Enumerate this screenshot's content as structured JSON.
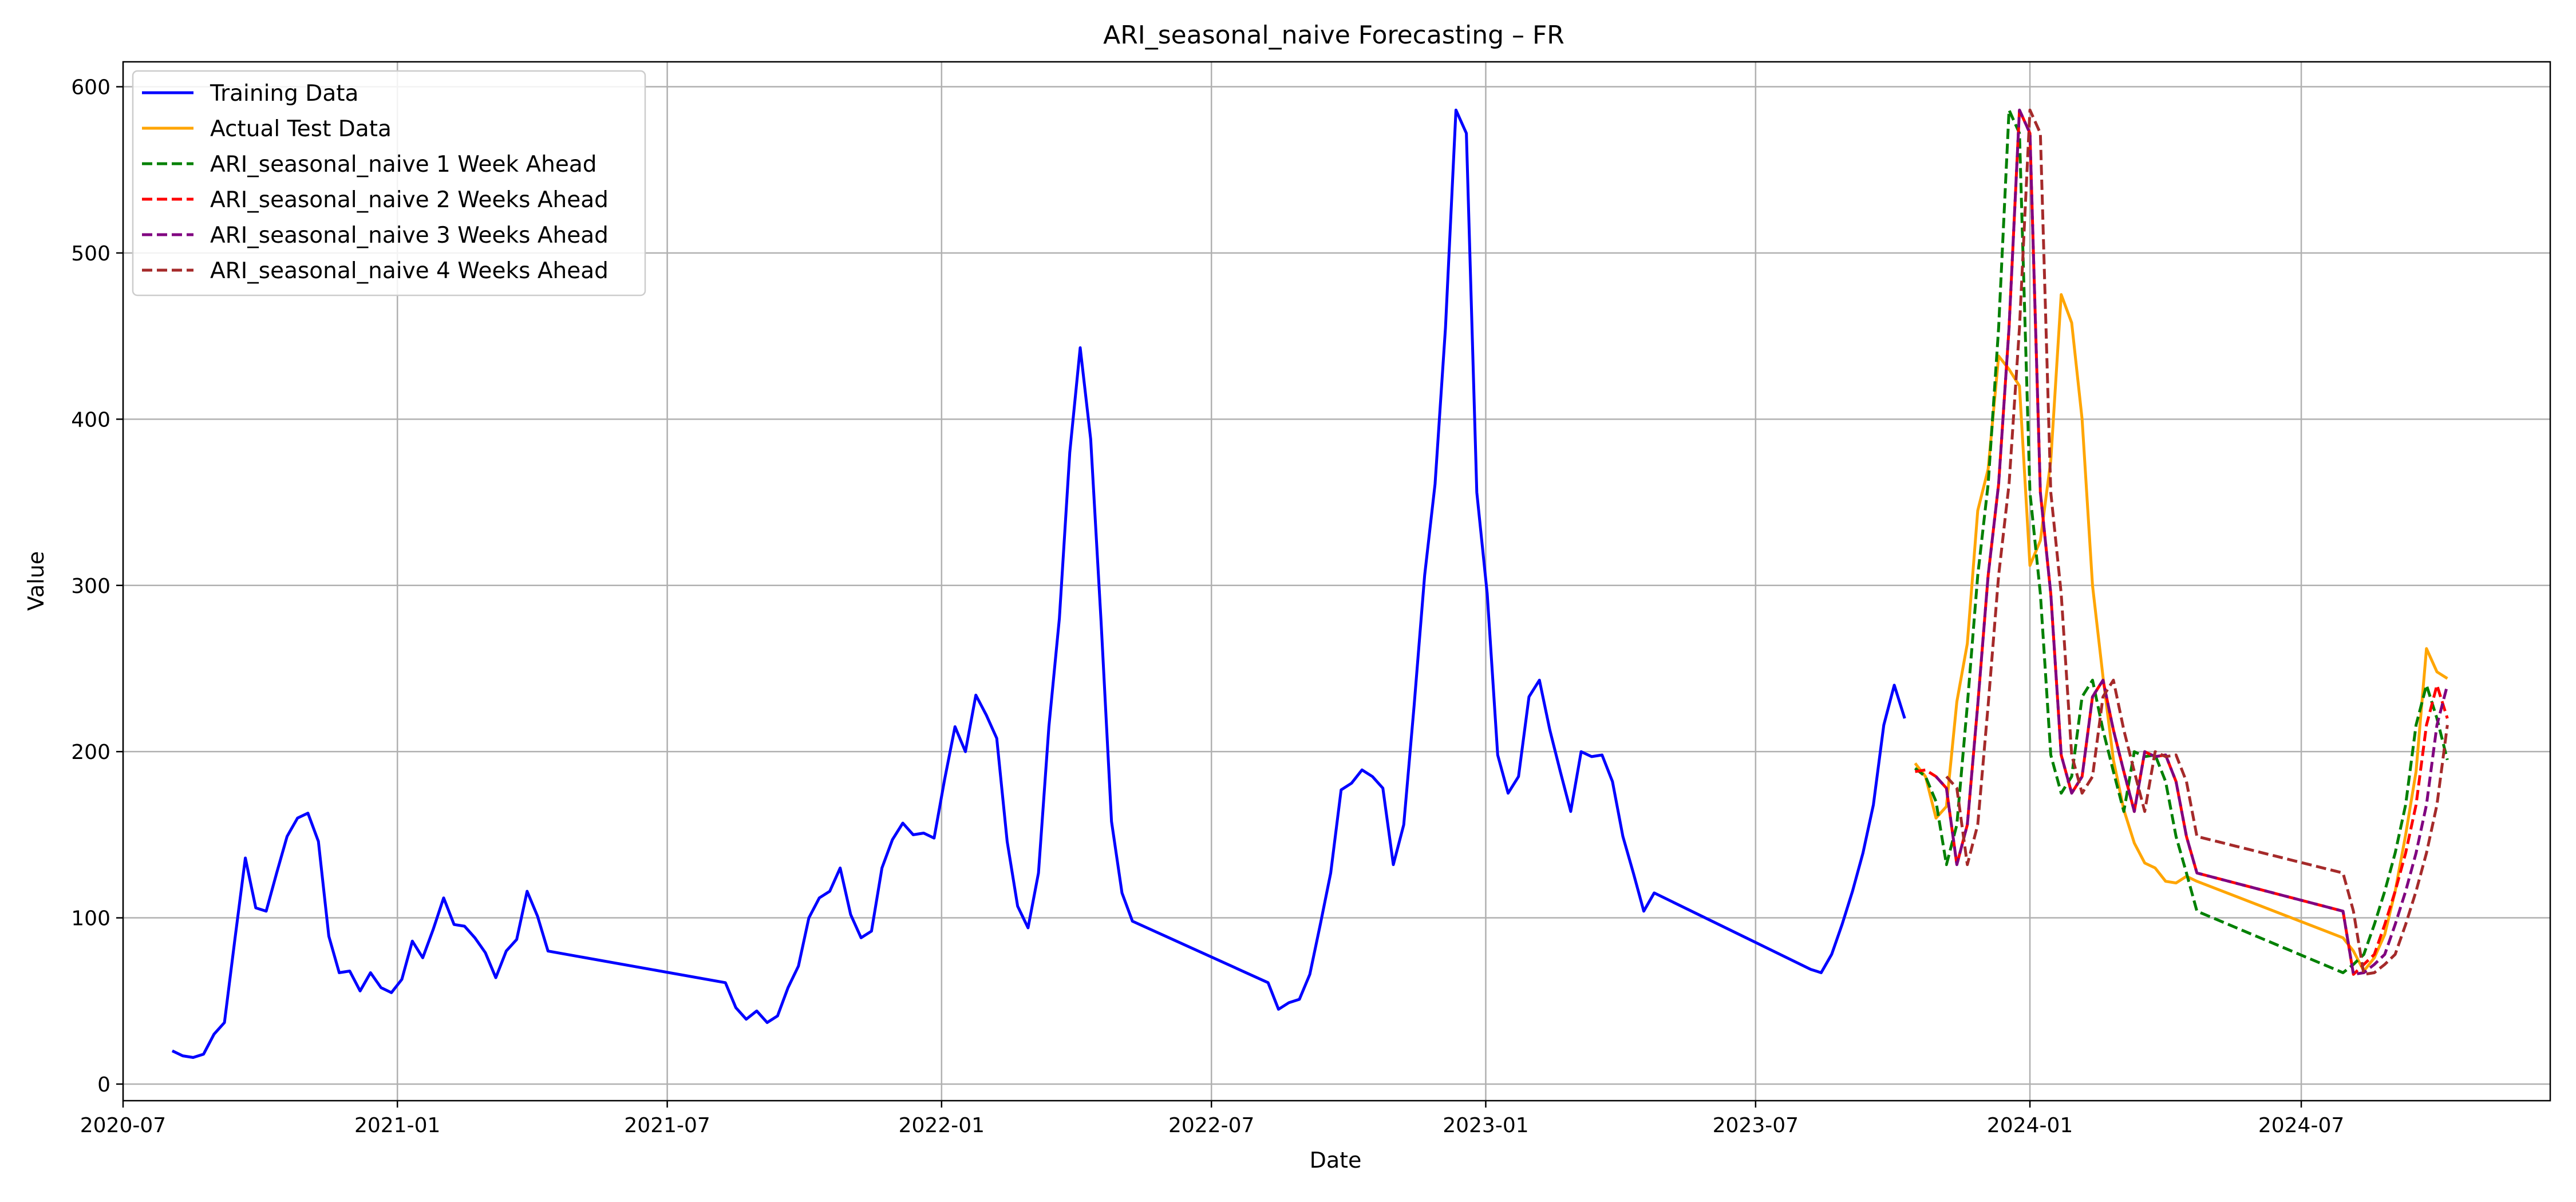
{
  "chart_data": {
    "type": "line",
    "title": "ARI_seasonal_naive Forecasting – FR",
    "xlabel": "Date",
    "ylabel": "Value",
    "xlim": [
      "2020-07-01",
      "2024-12-15"
    ],
    "ylim": [
      -10,
      615
    ],
    "x_ticks": [
      "2020-07-01",
      "2021-01-01",
      "2021-07-01",
      "2022-01-01",
      "2022-07-01",
      "2023-01-01",
      "2023-07-01",
      "2024-01-01",
      "2024-07-01"
    ],
    "x_tick_labels": [
      "2020-07",
      "2021-01",
      "2021-07",
      "2022-01",
      "2022-07",
      "2023-01",
      "2023-07",
      "2024-01",
      "2024-07"
    ],
    "y_ticks": [
      0,
      100,
      200,
      300,
      400,
      500,
      600
    ],
    "y_tick_labels": [
      "0",
      "100",
      "200",
      "300",
      "400",
      "500",
      "600"
    ],
    "grid": true,
    "legend_position": "top-left",
    "series": [
      {
        "name": "Training Data",
        "color": "#0000ff",
        "style": "solid",
        "x": [
          "2020-08-03",
          "2020-08-10",
          "2020-08-17",
          "2020-08-24",
          "2020-08-31",
          "2020-09-07",
          "2020-09-14",
          "2020-09-21",
          "2020-09-28",
          "2020-10-05",
          "2020-10-12",
          "2020-10-19",
          "2020-10-26",
          "2020-11-02",
          "2020-11-09",
          "2020-11-16",
          "2020-11-23",
          "2020-11-30",
          "2020-12-07",
          "2020-12-14",
          "2020-12-21",
          "2020-12-28",
          "2021-01-04",
          "2021-01-11",
          "2021-01-18",
          "2021-01-25",
          "2021-02-01",
          "2021-02-08",
          "2021-02-15",
          "2021-02-22",
          "2021-03-01",
          "2021-03-08",
          "2021-03-15",
          "2021-03-22",
          "2021-03-29",
          "2021-04-05",
          "2021-04-12",
          "2021-08-09",
          "2021-08-16",
          "2021-08-23",
          "2021-08-30",
          "2021-09-06",
          "2021-09-13",
          "2021-09-20",
          "2021-09-27",
          "2021-10-04",
          "2021-10-11",
          "2021-10-18",
          "2021-10-25",
          "2021-11-01",
          "2021-11-08",
          "2021-11-15",
          "2021-11-22",
          "2021-11-29",
          "2021-12-06",
          "2021-12-13",
          "2021-12-20",
          "2021-12-27",
          "2022-01-03",
          "2022-01-10",
          "2022-01-17",
          "2022-01-24",
          "2022-01-31",
          "2022-02-07",
          "2022-02-14",
          "2022-02-21",
          "2022-02-28",
          "2022-03-07",
          "2022-03-14",
          "2022-03-21",
          "2022-03-28",
          "2022-04-04",
          "2022-04-11",
          "2022-04-18",
          "2022-04-25",
          "2022-05-02",
          "2022-05-09",
          "2022-08-08",
          "2022-08-15",
          "2022-08-22",
          "2022-08-29",
          "2022-09-05",
          "2022-09-12",
          "2022-09-19",
          "2022-09-26",
          "2022-10-03",
          "2022-10-10",
          "2022-10-17",
          "2022-10-24",
          "2022-10-31",
          "2022-11-07",
          "2022-11-14",
          "2022-11-21",
          "2022-11-28",
          "2022-12-05",
          "2022-12-12",
          "2022-12-19",
          "2022-12-26",
          "2023-01-02",
          "2023-01-09",
          "2023-01-16",
          "2023-01-23",
          "2023-01-30",
          "2023-02-06",
          "2023-02-13",
          "2023-02-20",
          "2023-02-27",
          "2023-03-06",
          "2023-03-13",
          "2023-03-20",
          "2023-03-27",
          "2023-04-03",
          "2023-04-10",
          "2023-04-17",
          "2023-04-24",
          "2023-08-07",
          "2023-08-14",
          "2023-08-21",
          "2023-08-28",
          "2023-09-04",
          "2023-09-11",
          "2023-09-18",
          "2023-09-25",
          "2023-10-02",
          "2023-10-09"
        ],
        "y": [
          20,
          17,
          16,
          18,
          30,
          37,
          87,
          136,
          106,
          104,
          127,
          149,
          160,
          163,
          146,
          89,
          67,
          68,
          56,
          67,
          58,
          55,
          63,
          86,
          76,
          93,
          112,
          96,
          95,
          88,
          79,
          64,
          80,
          87,
          116,
          101,
          80,
          61,
          46,
          39,
          44,
          37,
          41,
          58,
          71,
          100,
          112,
          116,
          130,
          102,
          88,
          92,
          130,
          147,
          157,
          150,
          151,
          148,
          183,
          215,
          200,
          234,
          222,
          208,
          146,
          107,
          94,
          127,
          215,
          280,
          380,
          443,
          388,
          278,
          158,
          115,
          98,
          61,
          45,
          49,
          51,
          66,
          96,
          127,
          177,
          181,
          189,
          185,
          178,
          132,
          156,
          228,
          306,
          361,
          455,
          586,
          572,
          356,
          295,
          198,
          175,
          185,
          233,
          243,
          213,
          188,
          164,
          200,
          197,
          198,
          182,
          149,
          127,
          104,
          115,
          69,
          67,
          78,
          96,
          116,
          139,
          168,
          216,
          240,
          220
        ]
      },
      {
        "name": "Actual Test Data",
        "color": "#ffa500",
        "style": "solid",
        "x": [
          "2023-10-16",
          "2023-10-23",
          "2023-10-30",
          "2023-11-06",
          "2023-11-13",
          "2023-11-20",
          "2023-11-27",
          "2023-12-04",
          "2023-12-11",
          "2023-12-18",
          "2023-12-25",
          "2024-01-01",
          "2024-01-08",
          "2024-01-15",
          "2024-01-22",
          "2024-01-29",
          "2024-02-05",
          "2024-02-12",
          "2024-02-19",
          "2024-02-26",
          "2024-03-04",
          "2024-03-11",
          "2024-03-18",
          "2024-03-25",
          "2024-04-01",
          "2024-04-08",
          "2024-04-15",
          "2024-04-22",
          "2024-07-29",
          "2024-08-05",
          "2024-08-12",
          "2024-08-19",
          "2024-08-26",
          "2024-09-02",
          "2024-09-09",
          "2024-09-16",
          "2024-09-23",
          "2024-09-30",
          "2024-10-07"
        ],
        "y": [
          193,
          185,
          160,
          167,
          230,
          265,
          345,
          370,
          438,
          430,
          420,
          312,
          327,
          375,
          475,
          458,
          400,
          300,
          245,
          195,
          165,
          145,
          133,
          130,
          122,
          121,
          125,
          122,
          88,
          80,
          68,
          76,
          90,
          116,
          150,
          188,
          262,
          248,
          244
        ]
      },
      {
        "name": "ARI_seasonal_naive 1 Week Ahead",
        "color": "#008000",
        "style": "dashed",
        "x": [
          "2023-10-16",
          "2023-10-23",
          "2023-10-30",
          "2023-11-06",
          "2023-11-13",
          "2023-11-20",
          "2023-11-27",
          "2023-12-04",
          "2023-12-11",
          "2023-12-18",
          "2023-12-25",
          "2024-01-01",
          "2024-01-08",
          "2024-01-15",
          "2024-01-22",
          "2024-01-29",
          "2024-02-05",
          "2024-02-12",
          "2024-02-19",
          "2024-02-26",
          "2024-03-04",
          "2024-03-11",
          "2024-03-18",
          "2024-03-25",
          "2024-04-01",
          "2024-04-08",
          "2024-04-15",
          "2024-04-22",
          "2024-07-29",
          "2024-08-05",
          "2024-08-12",
          "2024-08-19",
          "2024-08-26",
          "2024-09-02",
          "2024-09-09",
          "2024-09-16",
          "2024-09-23",
          "2024-09-30",
          "2024-10-07"
        ],
        "y": [
          190,
          185,
          170,
          132,
          156,
          228,
          306,
          361,
          455,
          586,
          572,
          356,
          295,
          198,
          175,
          185,
          233,
          243,
          213,
          188,
          164,
          200,
          197,
          198,
          182,
          149,
          127,
          104,
          67,
          72,
          78,
          96,
          116,
          139,
          168,
          216,
          240,
          220,
          195
        ]
      },
      {
        "name": "ARI_seasonal_naive 2 Weeks Ahead",
        "color": "#ff0000",
        "style": "dashed",
        "x": [
          "2023-10-16",
          "2023-10-23",
          "2023-10-30",
          "2023-11-06",
          "2023-11-13",
          "2023-11-20",
          "2023-11-27",
          "2023-12-04",
          "2023-12-11",
          "2023-12-18",
          "2023-12-25",
          "2024-01-01",
          "2024-01-08",
          "2024-01-15",
          "2024-01-22",
          "2024-01-29",
          "2024-02-05",
          "2024-02-12",
          "2024-02-19",
          "2024-02-26",
          "2024-03-04",
          "2024-03-11",
          "2024-03-18",
          "2024-03-25",
          "2024-04-01",
          "2024-04-08",
          "2024-04-15",
          "2024-04-22",
          "2024-07-29",
          "2024-08-05",
          "2024-08-12",
          "2024-08-19",
          "2024-08-26",
          "2024-09-02",
          "2024-09-09",
          "2024-09-16",
          "2024-09-23",
          "2024-09-30",
          "2024-10-07"
        ],
        "y": [
          188,
          189,
          185,
          178,
          132,
          156,
          228,
          306,
          361,
          455,
          586,
          572,
          356,
          295,
          198,
          175,
          185,
          233,
          243,
          213,
          188,
          164,
          200,
          197,
          198,
          182,
          149,
          127,
          104,
          66,
          72,
          78,
          96,
          116,
          139,
          168,
          216,
          240,
          220
        ]
      },
      {
        "name": "ARI_seasonal_naive 3 Weeks Ahead",
        "color": "#800080",
        "style": "dashed",
        "x": [
          "2023-10-30",
          "2023-11-06",
          "2023-11-13",
          "2023-11-20",
          "2023-11-27",
          "2023-12-04",
          "2023-12-11",
          "2023-12-18",
          "2023-12-25",
          "2024-01-01",
          "2024-01-08",
          "2024-01-15",
          "2024-01-22",
          "2024-01-29",
          "2024-02-05",
          "2024-02-12",
          "2024-02-19",
          "2024-02-26",
          "2024-03-04",
          "2024-03-11",
          "2024-03-18",
          "2024-03-25",
          "2024-04-01",
          "2024-04-08",
          "2024-04-15",
          "2024-04-22",
          "2024-07-29",
          "2024-08-05",
          "2024-08-12",
          "2024-08-19",
          "2024-08-26",
          "2024-09-02",
          "2024-09-09",
          "2024-09-16",
          "2024-09-23",
          "2024-09-30",
          "2024-10-07"
        ],
        "y": [
          185,
          178,
          132,
          156,
          228,
          306,
          361,
          455,
          586,
          572,
          356,
          295,
          198,
          175,
          185,
          233,
          243,
          213,
          188,
          164,
          200,
          197,
          198,
          182,
          149,
          127,
          104,
          66,
          67,
          72,
          78,
          96,
          116,
          139,
          168,
          216,
          240
        ]
      },
      {
        "name": "ARI_seasonal_naive 4 Weeks Ahead",
        "color": "#a52a2a",
        "style": "dashed",
        "x": [
          "2023-11-06",
          "2023-11-13",
          "2023-11-20",
          "2023-11-27",
          "2023-12-04",
          "2023-12-11",
          "2023-12-18",
          "2023-12-25",
          "2024-01-01",
          "2024-01-08",
          "2024-01-15",
          "2024-01-22",
          "2024-01-29",
          "2024-02-05",
          "2024-02-12",
          "2024-02-19",
          "2024-02-26",
          "2024-03-04",
          "2024-03-11",
          "2024-03-18",
          "2024-03-25",
          "2024-04-01",
          "2024-04-08",
          "2024-04-15",
          "2024-04-22",
          "2024-07-29",
          "2024-08-05",
          "2024-08-12",
          "2024-08-19",
          "2024-08-26",
          "2024-09-02",
          "2024-09-09",
          "2024-09-16",
          "2024-09-23",
          "2024-09-30",
          "2024-10-07"
        ],
        "y": [
          185,
          178,
          132,
          156,
          228,
          306,
          361,
          455,
          586,
          572,
          356,
          295,
          198,
          175,
          185,
          233,
          243,
          213,
          188,
          164,
          200,
          197,
          198,
          182,
          149,
          127,
          104,
          66,
          67,
          72,
          78,
          96,
          116,
          139,
          168,
          216
        ]
      }
    ]
  }
}
